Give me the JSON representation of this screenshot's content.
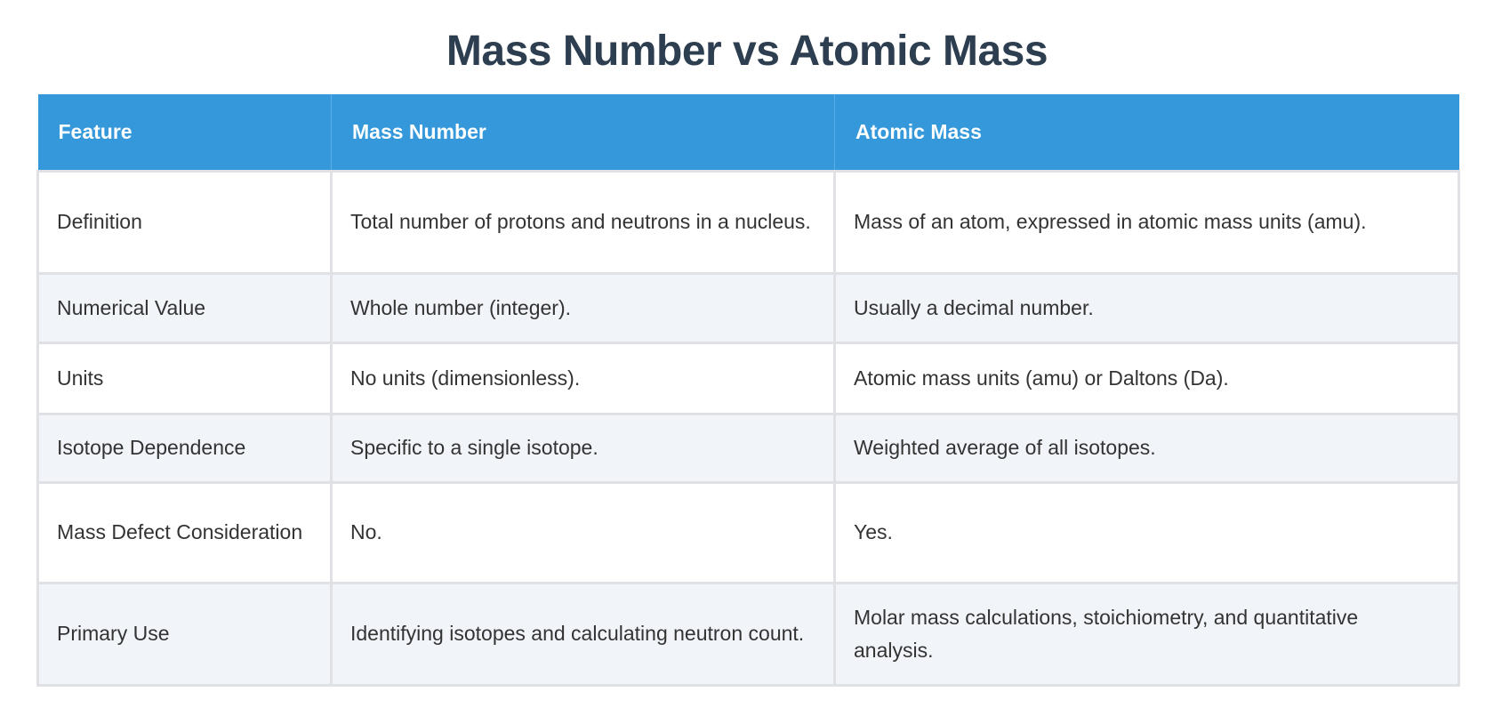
{
  "page": {
    "title": "Mass Number vs Atomic Mass"
  },
  "table": {
    "headers": [
      "Feature",
      "Mass Number",
      "Atomic Mass"
    ],
    "rows": [
      {
        "feature": "Definition",
        "mass_number": "Total number of protons and neutrons in a nucleus.",
        "atomic_mass": "Mass of an atom, expressed in atomic mass units (amu)."
      },
      {
        "feature": "Numerical Value",
        "mass_number": "Whole number (integer).",
        "atomic_mass": "Usually a decimal number."
      },
      {
        "feature": "Units",
        "mass_number": "No units (dimensionless).",
        "atomic_mass": "Atomic mass units (amu) or Daltons (Da)."
      },
      {
        "feature": "Isotope Dependence",
        "mass_number": "Specific to a single isotope.",
        "atomic_mass": "Weighted average of all isotopes."
      },
      {
        "feature": "Mass Defect Consideration",
        "mass_number": "No.",
        "atomic_mass": "Yes."
      },
      {
        "feature": "Primary Use",
        "mass_number": "Identifying isotopes and calculating neutron count.",
        "atomic_mass": "Molar mass calculations, stoichiometry, and quantitative analysis."
      }
    ]
  },
  "colors": {
    "title": "#2c3e50",
    "header_bg": "#3498db",
    "header_text": "#ffffff",
    "row_alt_bg": "#f1f4f9",
    "border": "#dfe1e4",
    "body_text": "#333333"
  }
}
